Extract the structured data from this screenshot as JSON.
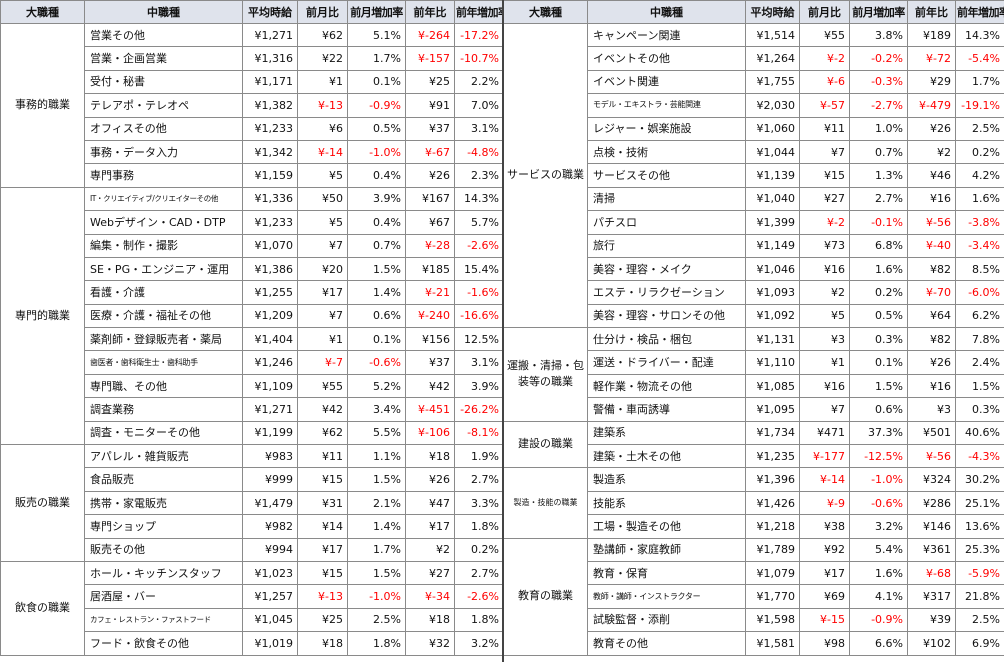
{
  "headers": {
    "major": "大職種",
    "middle": "中職種",
    "avg_wage": "平均時給",
    "mom": "前月比",
    "mom_rate": "前月増加率",
    "yoy": "前年比",
    "yoy_rate": "前年増加率"
  },
  "left_groups": [
    {
      "category": "事務的職業",
      "rows": [
        {
          "name": "営業その他",
          "wage": "¥1,271",
          "mom": "¥62",
          "mom_rate": "5.1%",
          "yoy": "¥-264",
          "yoy_rate": "-17.2%"
        },
        {
          "name": "営業・企画営業",
          "wage": "¥1,316",
          "mom": "¥22",
          "mom_rate": "1.7%",
          "yoy": "¥-157",
          "yoy_rate": "-10.7%"
        },
        {
          "name": "受付・秘書",
          "wage": "¥1,171",
          "mom": "¥1",
          "mom_rate": "0.1%",
          "yoy": "¥25",
          "yoy_rate": "2.2%"
        },
        {
          "name": "テレアポ・テレオペ",
          "wage": "¥1,382",
          "mom": "¥-13",
          "mom_rate": "-0.9%",
          "yoy": "¥91",
          "yoy_rate": "7.0%"
        },
        {
          "name": "オフィスその他",
          "wage": "¥1,233",
          "mom": "¥6",
          "mom_rate": "0.5%",
          "yoy": "¥37",
          "yoy_rate": "3.1%"
        },
        {
          "name": "事務・データ入力",
          "wage": "¥1,342",
          "mom": "¥-14",
          "mom_rate": "-1.0%",
          "yoy": "¥-67",
          "yoy_rate": "-4.8%"
        },
        {
          "name": "専門事務",
          "wage": "¥1,159",
          "mom": "¥5",
          "mom_rate": "0.4%",
          "yoy": "¥26",
          "yoy_rate": "2.3%"
        }
      ]
    },
    {
      "category": "専門的職業",
      "rows": [
        {
          "name": "IT・クリエイティブ/クリエイターその他",
          "wage": "¥1,336",
          "mom": "¥50",
          "mom_rate": "3.9%",
          "yoy": "¥167",
          "yoy_rate": "14.3%",
          "size": "xs"
        },
        {
          "name": "Webデザイン・CAD・DTP",
          "wage": "¥1,233",
          "mom": "¥5",
          "mom_rate": "0.4%",
          "yoy": "¥67",
          "yoy_rate": "5.7%"
        },
        {
          "name": "編集・制作・撮影",
          "wage": "¥1,070",
          "mom": "¥7",
          "mom_rate": "0.7%",
          "yoy": "¥-28",
          "yoy_rate": "-2.6%"
        },
        {
          "name": "SE・PG・エンジニア・運用",
          "wage": "¥1,386",
          "mom": "¥20",
          "mom_rate": "1.5%",
          "yoy": "¥185",
          "yoy_rate": "15.4%"
        },
        {
          "name": "看護・介護",
          "wage": "¥1,255",
          "mom": "¥17",
          "mom_rate": "1.4%",
          "yoy": "¥-21",
          "yoy_rate": "-1.6%"
        },
        {
          "name": "医療・介護・福祉その他",
          "wage": "¥1,209",
          "mom": "¥7",
          "mom_rate": "0.6%",
          "yoy": "¥-240",
          "yoy_rate": "-16.6%"
        },
        {
          "name": "薬剤師・登録販売者・薬局",
          "wage": "¥1,404",
          "mom": "¥1",
          "mom_rate": "0.1%",
          "yoy": "¥156",
          "yoy_rate": "12.5%"
        },
        {
          "name": "歯医者・歯科衛生士・歯科助手",
          "wage": "¥1,246",
          "mom": "¥-7",
          "mom_rate": "-0.6%",
          "yoy": "¥37",
          "yoy_rate": "3.1%",
          "size": "small"
        },
        {
          "name": "専門職、その他",
          "wage": "¥1,109",
          "mom": "¥55",
          "mom_rate": "5.2%",
          "yoy": "¥42",
          "yoy_rate": "3.9%"
        },
        {
          "name": "調査業務",
          "wage": "¥1,271",
          "mom": "¥42",
          "mom_rate": "3.4%",
          "yoy": "¥-451",
          "yoy_rate": "-26.2%"
        },
        {
          "name": "調査・モニターその他",
          "wage": "¥1,199",
          "mom": "¥62",
          "mom_rate": "5.5%",
          "yoy": "¥-106",
          "yoy_rate": "-8.1%"
        }
      ]
    },
    {
      "category": "販売の職業",
      "rows": [
        {
          "name": "アパレル・雑貨販売",
          "wage": "¥983",
          "mom": "¥11",
          "mom_rate": "1.1%",
          "yoy": "¥18",
          "yoy_rate": "1.9%"
        },
        {
          "name": "食品販売",
          "wage": "¥999",
          "mom": "¥15",
          "mom_rate": "1.5%",
          "yoy": "¥26",
          "yoy_rate": "2.7%"
        },
        {
          "name": "携帯・家電販売",
          "wage": "¥1,479",
          "mom": "¥31",
          "mom_rate": "2.1%",
          "yoy": "¥47",
          "yoy_rate": "3.3%"
        },
        {
          "name": "専門ショップ",
          "wage": "¥982",
          "mom": "¥14",
          "mom_rate": "1.4%",
          "yoy": "¥17",
          "yoy_rate": "1.8%"
        },
        {
          "name": "販売その他",
          "wage": "¥994",
          "mom": "¥17",
          "mom_rate": "1.7%",
          "yoy": "¥2",
          "yoy_rate": "0.2%"
        }
      ]
    },
    {
      "category": "飲食の職業",
      "rows": [
        {
          "name": "ホール・キッチンスタッフ",
          "wage": "¥1,023",
          "mom": "¥15",
          "mom_rate": "1.5%",
          "yoy": "¥27",
          "yoy_rate": "2.7%"
        },
        {
          "name": "居酒屋・バー",
          "wage": "¥1,257",
          "mom": "¥-13",
          "mom_rate": "-1.0%",
          "yoy": "¥-34",
          "yoy_rate": "-2.6%"
        },
        {
          "name": "カフェ・レストラン・ファストフード",
          "wage": "¥1,045",
          "mom": "¥25",
          "mom_rate": "2.5%",
          "yoy": "¥18",
          "yoy_rate": "1.8%",
          "size": "xs"
        },
        {
          "name": "フード・飲食その他",
          "wage": "¥1,019",
          "mom": "¥18",
          "mom_rate": "1.8%",
          "yoy": "¥32",
          "yoy_rate": "3.2%"
        }
      ]
    }
  ],
  "right_groups": [
    {
      "category": "サービスの職業",
      "rows": [
        {
          "name": "キャンペーン関連",
          "wage": "¥1,514",
          "mom": "¥55",
          "mom_rate": "3.8%",
          "yoy": "¥189",
          "yoy_rate": "14.3%"
        },
        {
          "name": "イベントその他",
          "wage": "¥1,264",
          "mom": "¥-2",
          "mom_rate": "-0.2%",
          "yoy": "¥-72",
          "yoy_rate": "-5.4%"
        },
        {
          "name": "イベント関連",
          "wage": "¥1,755",
          "mom": "¥-6",
          "mom_rate": "-0.3%",
          "yoy": "¥29",
          "yoy_rate": "1.7%"
        },
        {
          "name": "モデル・エキストラ・芸能関連",
          "wage": "¥2,030",
          "mom": "¥-57",
          "mom_rate": "-2.7%",
          "yoy": "¥-479",
          "yoy_rate": "-19.1%",
          "size": "small"
        },
        {
          "name": "レジャー・娯楽施設",
          "wage": "¥1,060",
          "mom": "¥11",
          "mom_rate": "1.0%",
          "yoy": "¥26",
          "yoy_rate": "2.5%"
        },
        {
          "name": "点検・技術",
          "wage": "¥1,044",
          "mom": "¥7",
          "mom_rate": "0.7%",
          "yoy": "¥2",
          "yoy_rate": "0.2%"
        },
        {
          "name": "サービスその他",
          "wage": "¥1,139",
          "mom": "¥15",
          "mom_rate": "1.3%",
          "yoy": "¥46",
          "yoy_rate": "4.2%"
        },
        {
          "name": "清掃",
          "wage": "¥1,040",
          "mom": "¥27",
          "mom_rate": "2.7%",
          "yoy": "¥16",
          "yoy_rate": "1.6%"
        },
        {
          "name": "パチスロ",
          "wage": "¥1,399",
          "mom": "¥-2",
          "mom_rate": "-0.1%",
          "yoy": "¥-56",
          "yoy_rate": "-3.8%"
        },
        {
          "name": "旅行",
          "wage": "¥1,149",
          "mom": "¥73",
          "mom_rate": "6.8%",
          "yoy": "¥-40",
          "yoy_rate": "-3.4%"
        },
        {
          "name": "美容・理容・メイク",
          "wage": "¥1,046",
          "mom": "¥16",
          "mom_rate": "1.6%",
          "yoy": "¥82",
          "yoy_rate": "8.5%"
        },
        {
          "name": "エステ・リラクゼーション",
          "wage": "¥1,093",
          "mom": "¥2",
          "mom_rate": "0.2%",
          "yoy": "¥-70",
          "yoy_rate": "-6.0%"
        },
        {
          "name": "美容・理容・サロンその他",
          "wage": "¥1,092",
          "mom": "¥5",
          "mom_rate": "0.5%",
          "yoy": "¥64",
          "yoy_rate": "6.2%"
        }
      ]
    },
    {
      "category": "運搬・清掃・包装等の職業",
      "rows": [
        {
          "name": "仕分け・検品・梱包",
          "wage": "¥1,131",
          "mom": "¥3",
          "mom_rate": "0.3%",
          "yoy": "¥82",
          "yoy_rate": "7.8%"
        },
        {
          "name": "運送・ドライバー・配達",
          "wage": "¥1,110",
          "mom": "¥1",
          "mom_rate": "0.1%",
          "yoy": "¥26",
          "yoy_rate": "2.4%"
        },
        {
          "name": "軽作業・物流その他",
          "wage": "¥1,085",
          "mom": "¥16",
          "mom_rate": "1.5%",
          "yoy": "¥16",
          "yoy_rate": "1.5%"
        },
        {
          "name": "警備・車両誘導",
          "wage": "¥1,095",
          "mom": "¥7",
          "mom_rate": "0.6%",
          "yoy": "¥3",
          "yoy_rate": "0.3%"
        }
      ]
    },
    {
      "category": "建設の職業",
      "rows": [
        {
          "name": "建築系",
          "wage": "¥1,734",
          "mom": "¥471",
          "mom_rate": "37.3%",
          "yoy": "¥501",
          "yoy_rate": "40.6%"
        },
        {
          "name": "建築・土木その他",
          "wage": "¥1,235",
          "mom": "¥-177",
          "mom_rate": "-12.5%",
          "yoy": "¥-56",
          "yoy_rate": "-4.3%"
        }
      ]
    },
    {
      "category": "製造・技能の職業",
      "size": "small",
      "rows": [
        {
          "name": "製造系",
          "wage": "¥1,396",
          "mom": "¥-14",
          "mom_rate": "-1.0%",
          "yoy": "¥324",
          "yoy_rate": "30.2%"
        },
        {
          "name": "技能系",
          "wage": "¥1,426",
          "mom": "¥-9",
          "mom_rate": "-0.6%",
          "yoy": "¥286",
          "yoy_rate": "25.1%"
        },
        {
          "name": "工場・製造その他",
          "wage": "¥1,218",
          "mom": "¥38",
          "mom_rate": "3.2%",
          "yoy": "¥146",
          "yoy_rate": "13.6%"
        }
      ]
    },
    {
      "category": "教育の職業",
      "rows": [
        {
          "name": "塾講師・家庭教師",
          "wage": "¥1,789",
          "mom": "¥92",
          "mom_rate": "5.4%",
          "yoy": "¥361",
          "yoy_rate": "25.3%"
        },
        {
          "name": "教育・保育",
          "wage": "¥1,079",
          "mom": "¥17",
          "mom_rate": "1.6%",
          "yoy": "¥-68",
          "yoy_rate": "-5.9%"
        },
        {
          "name": "教師・講師・インストラクター",
          "wage": "¥1,770",
          "mom": "¥69",
          "mom_rate": "4.1%",
          "yoy": "¥317",
          "yoy_rate": "21.8%",
          "size": "small"
        },
        {
          "name": "試験監督・添削",
          "wage": "¥1,598",
          "mom": "¥-15",
          "mom_rate": "-0.9%",
          "yoy": "¥39",
          "yoy_rate": "2.5%"
        },
        {
          "name": "教育その他",
          "wage": "¥1,581",
          "mom": "¥98",
          "mom_rate": "6.6%",
          "yoy": "¥102",
          "yoy_rate": "6.9%"
        }
      ]
    }
  ],
  "colors": {
    "negative": "#ff0000",
    "header_bg": "#dfe3ec",
    "border": "#8a8a8a"
  }
}
